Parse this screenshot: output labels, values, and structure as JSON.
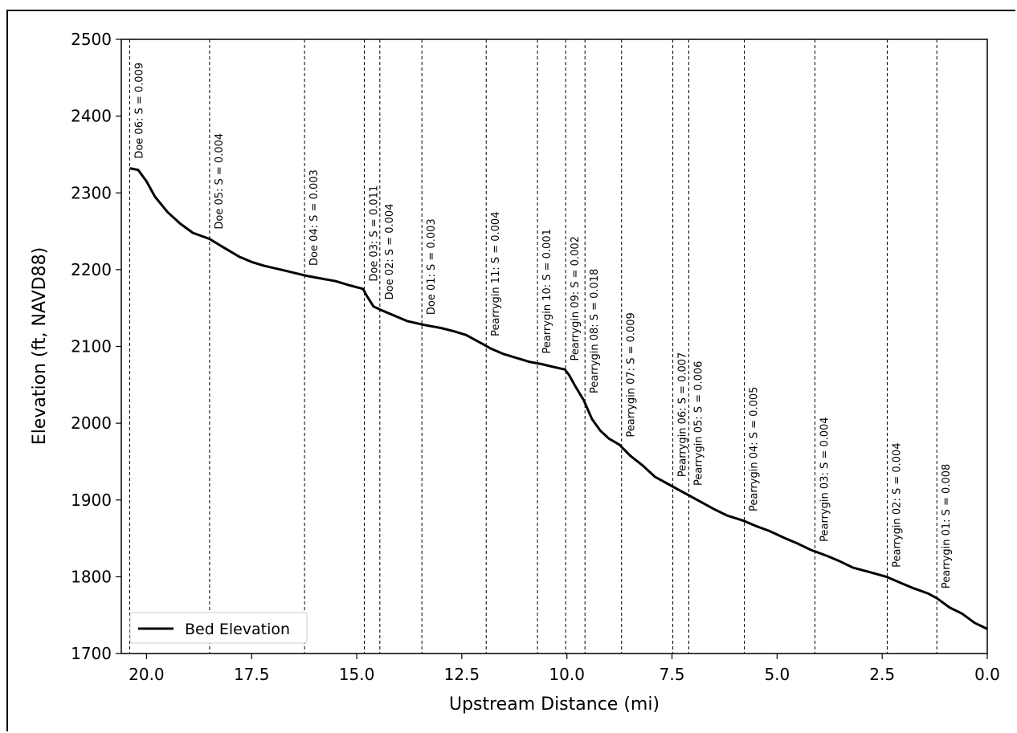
{
  "chart_data": {
    "type": "line",
    "xlabel": "Upstream Distance (mi)",
    "ylabel": "Elevation (ft, NAVD88)",
    "xlim": [
      20.6,
      0.0
    ],
    "ylim": [
      1700,
      2500
    ],
    "x_reversed": true,
    "x_ticks": [
      20.0,
      17.5,
      15.0,
      12.5,
      10.0,
      7.5,
      5.0,
      2.5,
      0.0
    ],
    "x_tick_labels": [
      "20.0",
      "17.5",
      "15.0",
      "12.5",
      "10.0",
      "7.5",
      "5.0",
      "2.5",
      "0.0"
    ],
    "y_ticks": [
      1700,
      1800,
      1900,
      2000,
      2100,
      2200,
      2300,
      2400,
      2500
    ],
    "y_tick_labels": [
      "1700",
      "1800",
      "1900",
      "2000",
      "2100",
      "2200",
      "2300",
      "2400",
      "2500"
    ],
    "grid": false,
    "legend_position": "lower-left",
    "series": [
      {
        "name": "Bed Elevation",
        "color": "#000000",
        "x": [
          20.4,
          20.2,
          20.0,
          19.8,
          19.5,
          19.2,
          18.9,
          18.5,
          18.2,
          17.8,
          17.5,
          17.2,
          16.8,
          16.5,
          16.2,
          15.8,
          15.5,
          15.2,
          14.85,
          14.75,
          14.6,
          14.4,
          14.1,
          13.8,
          13.4,
          13.0,
          12.7,
          12.4,
          12.0,
          11.8,
          11.5,
          11.2,
          10.9,
          10.6,
          10.3,
          10.05,
          9.95,
          9.8,
          9.6,
          9.4,
          9.2,
          9.0,
          8.75,
          8.5,
          8.2,
          7.9,
          7.5,
          7.3,
          7.1,
          6.8,
          6.5,
          6.2,
          5.8,
          5.5,
          5.2,
          4.8,
          4.5,
          4.2,
          3.8,
          3.5,
          3.2,
          2.8,
          2.4,
          2.1,
          1.8,
          1.4,
          1.2,
          0.9,
          0.6,
          0.3,
          0.0
        ],
        "y": [
          2332,
          2330,
          2315,
          2295,
          2275,
          2260,
          2248,
          2240,
          2230,
          2217,
          2210,
          2205,
          2200,
          2196,
          2192,
          2188,
          2185,
          2180,
          2175,
          2165,
          2152,
          2147,
          2140,
          2133,
          2128,
          2124,
          2120,
          2115,
          2103,
          2097,
          2090,
          2085,
          2080,
          2077,
          2073,
          2070,
          2063,
          2048,
          2030,
          2005,
          1990,
          1980,
          1972,
          1958,
          1945,
          1930,
          1918,
          1912,
          1906,
          1897,
          1888,
          1880,
          1873,
          1866,
          1860,
          1850,
          1843,
          1835,
          1827,
          1820,
          1812,
          1806,
          1800,
          1793,
          1786,
          1778,
          1772,
          1760,
          1752,
          1740,
          1732
        ]
      }
    ],
    "reaches": [
      {
        "x": 20.4,
        "label": "Doe 06: S = 0.009"
      },
      {
        "x": 18.5,
        "label": "Doe 05: S = 0.004"
      },
      {
        "x": 16.24,
        "label": "Doe 04: S = 0.003"
      },
      {
        "x": 14.82,
        "label": "Doe 03: S = 0.011"
      },
      {
        "x": 14.45,
        "label": "Doe 02: S = 0.004"
      },
      {
        "x": 13.45,
        "label": "Doe 01: S = 0.003"
      },
      {
        "x": 11.92,
        "label": "Pearrygin 11: S = 0.004"
      },
      {
        "x": 10.7,
        "label": "Pearrygin 10: S = 0.001"
      },
      {
        "x": 10.03,
        "label": "Pearrygin 09: S = 0.002"
      },
      {
        "x": 9.57,
        "label": "Pearrygin 08: S = 0.018"
      },
      {
        "x": 8.7,
        "label": "Pearrygin 07: S = 0.009"
      },
      {
        "x": 7.48,
        "label": "Pearrygin 06: S = 0.007"
      },
      {
        "x": 7.1,
        "label": "Pearrygin 05: S = 0.006"
      },
      {
        "x": 5.78,
        "label": "Pearrygin 04: S = 0.005"
      },
      {
        "x": 4.1,
        "label": "Pearrygin 03: S = 0.004"
      },
      {
        "x": 2.38,
        "label": "Pearrygin 02: S = 0.004"
      },
      {
        "x": 1.2,
        "label": "Pearrygin 01: S = 0.008"
      }
    ]
  }
}
